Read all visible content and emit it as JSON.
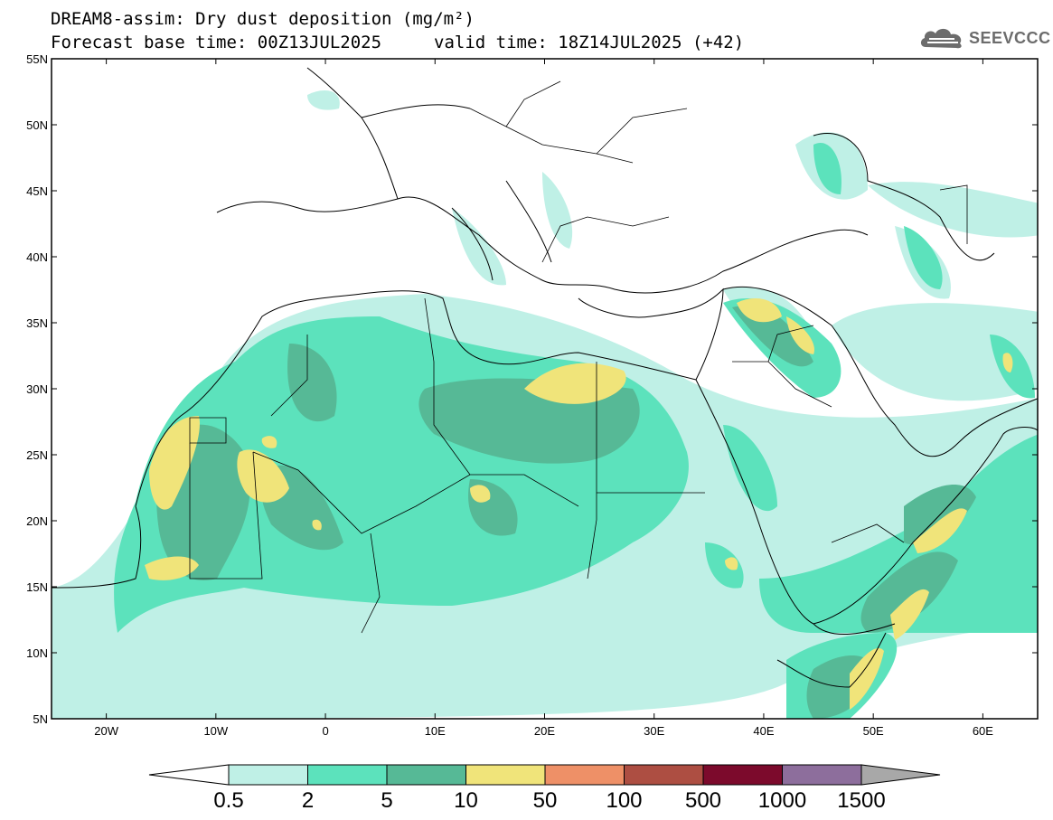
{
  "header": {
    "title_line1": "DREAM8-assim: Dry dust deposition (mg/m²)",
    "forecast_base": "Forecast base time: 00Z13JUL2025",
    "valid_time": "valid time: 18Z14JUL2025 (+42)"
  },
  "logo": {
    "text": "SEEVCCC",
    "icon": "cloud-icon"
  },
  "map": {
    "lon_range": [
      -25,
      65
    ],
    "lat_range": [
      5,
      55
    ],
    "lon_ticks": [
      {
        "value": -20,
        "label": "20W"
      },
      {
        "value": -10,
        "label": "10W"
      },
      {
        "value": 0,
        "label": "0"
      },
      {
        "value": 10,
        "label": "10E"
      },
      {
        "value": 20,
        "label": "20E"
      },
      {
        "value": 30,
        "label": "30E"
      },
      {
        "value": 40,
        "label": "40E"
      },
      {
        "value": 50,
        "label": "50E"
      },
      {
        "value": 60,
        "label": "60E"
      }
    ],
    "lat_ticks": [
      {
        "value": 55,
        "label": "55N"
      },
      {
        "value": 50,
        "label": "50N"
      },
      {
        "value": 45,
        "label": "45N"
      },
      {
        "value": 40,
        "label": "40N"
      },
      {
        "value": 35,
        "label": "35N"
      },
      {
        "value": 30,
        "label": "30N"
      },
      {
        "value": 25,
        "label": "25N"
      },
      {
        "value": 20,
        "label": "20N"
      },
      {
        "value": 15,
        "label": "15N"
      },
      {
        "value": 10,
        "label": "10N"
      },
      {
        "value": 5,
        "label": "5N"
      }
    ]
  },
  "colorbar": {
    "labels": [
      "0.5",
      "2",
      "5",
      "10",
      "50",
      "100",
      "500",
      "1000",
      "1500"
    ],
    "under_color": "#ffffff",
    "colors": [
      "#bff0e6",
      "#5ce2bc",
      "#56b996",
      "#f0e47a",
      "#ee9067",
      "#ad4e42",
      "#7c0a2c",
      "#8d6e9c"
    ],
    "over_color": "#a8a8a8"
  }
}
